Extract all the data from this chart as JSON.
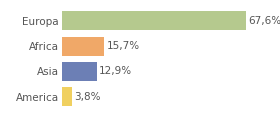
{
  "categories": [
    "America",
    "Asia",
    "Africa",
    "Europa"
  ],
  "values": [
    3.8,
    12.9,
    15.7,
    67.6
  ],
  "labels": [
    "3,8%",
    "12,9%",
    "15,7%",
    "67,6%"
  ],
  "bar_colors": [
    "#f0d060",
    "#6c7fb5",
    "#f0a868",
    "#b5c98e"
  ],
  "xlim": [
    0,
    78
  ],
  "background_color": "#ffffff",
  "label_fontsize": 7.5,
  "tick_fontsize": 7.5,
  "bar_height": 0.75
}
